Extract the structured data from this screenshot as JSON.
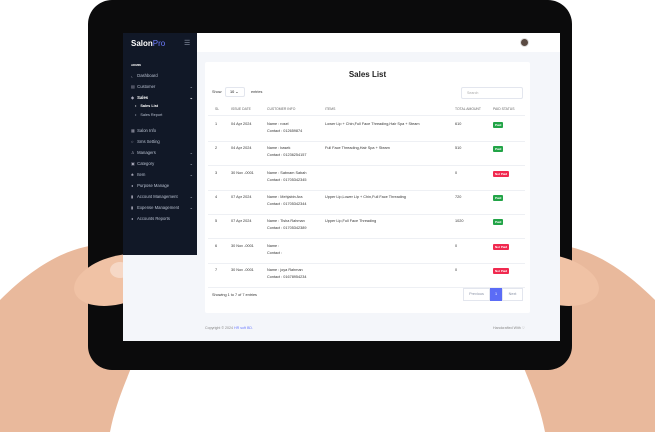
{
  "app": {
    "brand_main": "Salon",
    "brand_accent": "Pro"
  },
  "sidebar": {
    "section": "ADMIN",
    "items": [
      {
        "label": "Dashboard",
        "icon": "chart-icon",
        "chevron": false
      },
      {
        "label": "Customer",
        "icon": "id-card-icon",
        "chevron": true
      },
      {
        "label": "Sales",
        "icon": "tag-icon",
        "chevron": true,
        "active": true
      },
      {
        "label": "Salon Info",
        "icon": "store-icon",
        "chevron": false
      },
      {
        "label": "Sms Setting",
        "icon": "chat-icon",
        "chevron": false
      },
      {
        "label": "Managers",
        "icon": "user-icon",
        "chevron": true
      },
      {
        "label": "Category",
        "icon": "database-icon",
        "chevron": true
      },
      {
        "label": "Item",
        "icon": "sitemap-icon",
        "chevron": true
      },
      {
        "label": "Purpose Manage",
        "icon": "megaphone-icon",
        "chevron": false
      },
      {
        "label": "Account Management",
        "icon": "file-icon",
        "chevron": true
      },
      {
        "label": "Expense Management",
        "icon": "file-icon",
        "chevron": true
      },
      {
        "label": "Accounts Reports",
        "icon": "megaphone-icon",
        "chevron": false
      }
    ],
    "sales_sub": [
      "Sales List",
      "Sales Report"
    ]
  },
  "main": {
    "title": "Sales List",
    "show_label": "Show",
    "entries_value": "10",
    "entries_label": "entries",
    "search_placeholder": "Search",
    "columns": [
      "SL",
      "ISSUE DATE",
      "CUSTOMER INFO",
      "ITEMS",
      "TOTAL AMOUNT",
      "PAID STATUS"
    ],
    "rows": [
      {
        "sl": "1",
        "date": "04 Apr 2024",
        "name": "Name : rosel",
        "contact": "Contact : 012659874",
        "items": "Lower Lip + Chin,Full Face Threading,Hair Spa + Steam",
        "total": "610",
        "status": "Paid"
      },
      {
        "sl": "2",
        "date": "04 Apr 2024",
        "name": "Name : basek",
        "contact": "Contact : 01236254157",
        "items": "Full Face Threading,Hair Spa + Steam",
        "total": "510",
        "status": "Paid"
      },
      {
        "sl": "3",
        "date": "30 Nov -0001",
        "name": "Name : Sabnam Sabah",
        "contact": "Contact : 01705342345",
        "items": "",
        "total": "0",
        "status": "Not Paid"
      },
      {
        "sl": "4",
        "date": "07 Apr 2024",
        "name": "Name : Mehjabin Ara",
        "contact": "Contact : 01705342344",
        "items": "Upper Lip,Lower Lip + Chin,Full Face Threading",
        "total": "720",
        "status": "Paid"
      },
      {
        "sl": "5",
        "date": "07 Apr 2024",
        "name": "Name : Tisha Rahman",
        "contact": "Contact : 01705342389",
        "items": "Upper Lip,Full Face Threading",
        "total": "1020",
        "status": "Paid"
      },
      {
        "sl": "6",
        "date": "30 Nov -0001",
        "name": "Name :",
        "contact": "Contact :",
        "items": "",
        "total": "0",
        "status": "Not Paid"
      },
      {
        "sl": "7",
        "date": "30 Nov -0001",
        "name": "Name : joya Rahman",
        "contact": "Contact : 01678954234",
        "items": "",
        "total": "0",
        "status": "Not Paid"
      }
    ],
    "showing": "Showing 1 to 7 of 7 entries",
    "pager": {
      "previous": "Previous",
      "page": "1",
      "next": "Next"
    }
  },
  "footer": {
    "copyright": "Copyright © 2024",
    "company": "HR soft BD.",
    "handcrafted": "Handcrafted With ♡"
  },
  "colors": {
    "sidebar": "#111827",
    "accent": "#6d7cff",
    "paid": "#22a447",
    "not_paid": "#f0294f"
  }
}
